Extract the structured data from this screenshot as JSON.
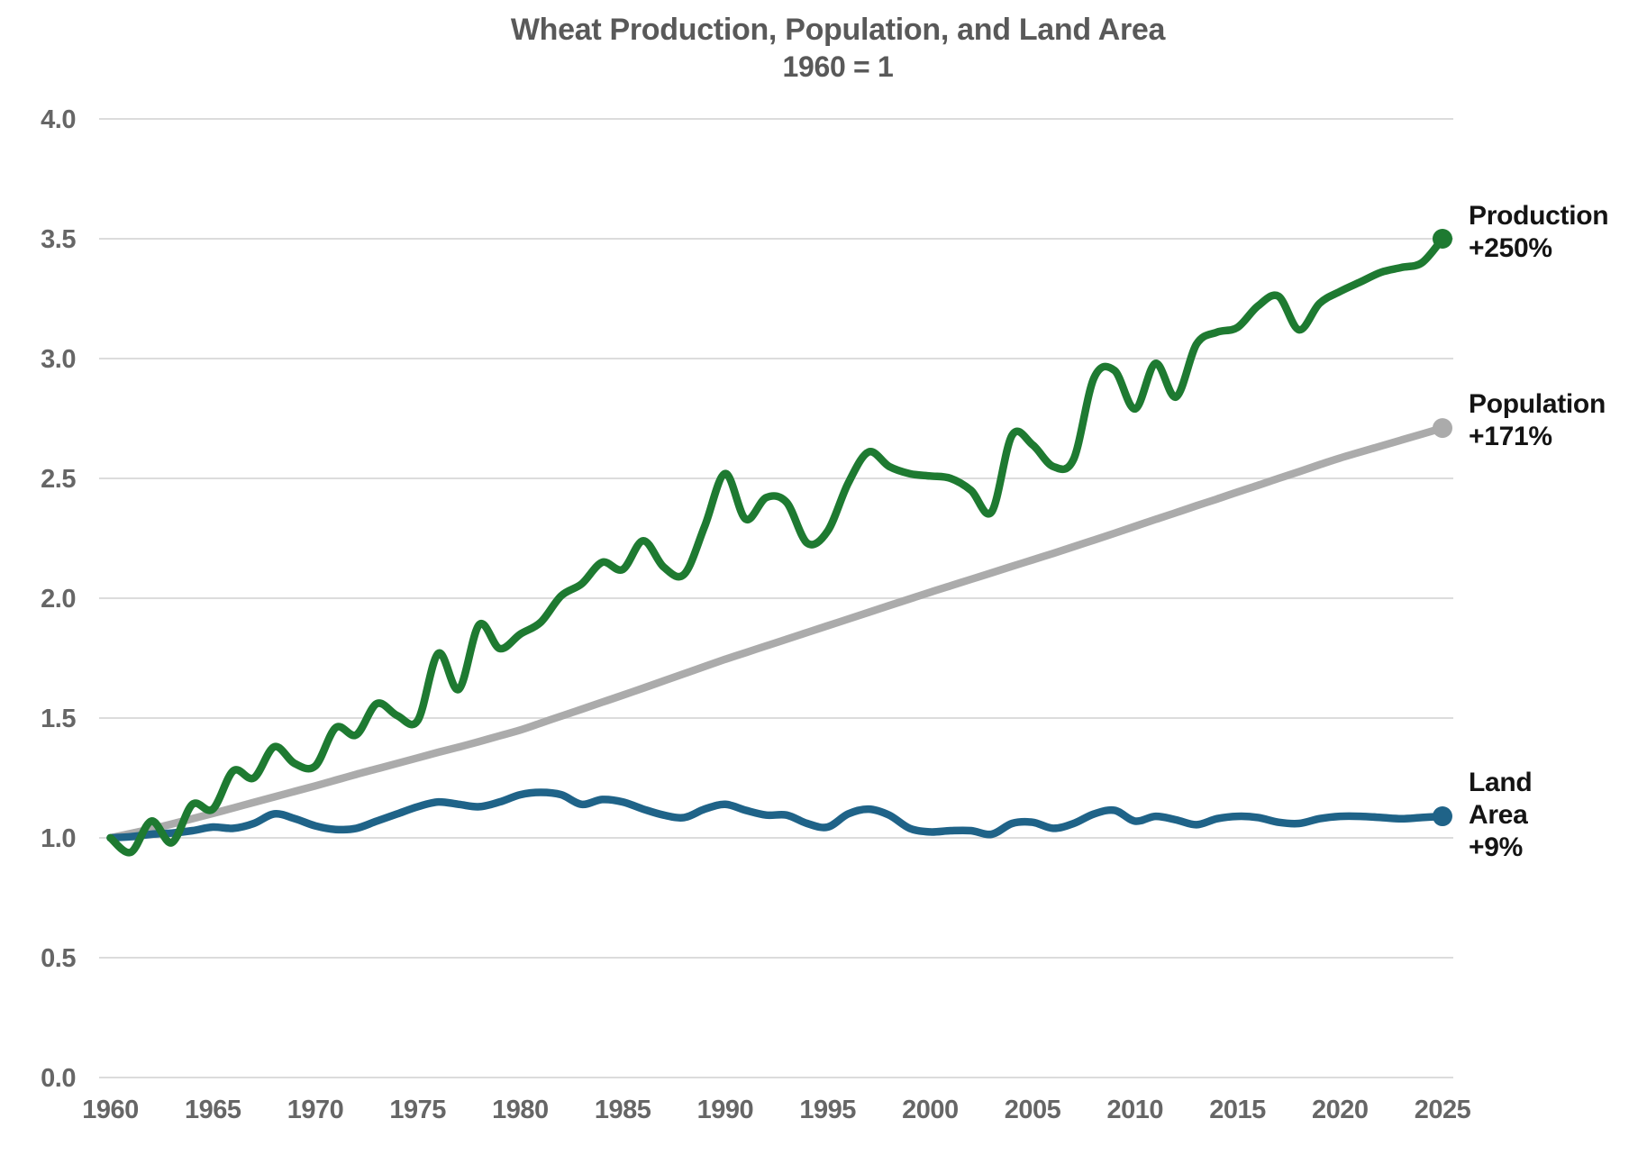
{
  "chart_data": {
    "type": "line",
    "title": "Wheat Production, Population, and Land Area",
    "subtitle": "1960 = 1",
    "x_start": 1960,
    "x_end": 2025,
    "x_step": 1,
    "ylim": [
      0.0,
      4.0
    ],
    "ytick_interval": 0.5,
    "ytick_labels": [
      "0.0",
      "0.5",
      "1.0",
      "1.5",
      "2.0",
      "2.5",
      "3.0",
      "3.5",
      "4.0"
    ],
    "xtick_labels": [
      "1960",
      "1965",
      "1970",
      "1975",
      "1980",
      "1985",
      "1990",
      "1995",
      "2000",
      "2005",
      "2010",
      "2015",
      "2020",
      "2025"
    ],
    "grid": "horizontal-only",
    "legend_position": "end-of-line-labels-right",
    "series": [
      {
        "name": "Production",
        "color": "#1e7a31",
        "end_label": [
          "Production",
          "+250%"
        ],
        "end_value_pct": "+250%",
        "values": [
          1.0,
          0.94,
          1.07,
          0.98,
          1.14,
          1.12,
          1.28,
          1.25,
          1.38,
          1.31,
          1.3,
          1.46,
          1.43,
          1.56,
          1.51,
          1.49,
          1.77,
          1.62,
          1.89,
          1.79,
          1.85,
          1.9,
          2.01,
          2.06,
          2.15,
          2.12,
          2.24,
          2.13,
          2.1,
          2.3,
          2.52,
          2.33,
          2.42,
          2.4,
          2.23,
          2.28,
          2.48,
          2.61,
          2.55,
          2.52,
          2.51,
          2.5,
          2.45,
          2.36,
          2.68,
          2.64,
          2.55,
          2.58,
          2.92,
          2.95,
          2.79,
          2.98,
          2.84,
          3.06,
          3.11,
          3.13,
          3.22,
          3.26,
          3.12,
          3.23,
          3.28,
          3.32,
          3.36,
          3.38,
          3.4,
          3.5
        ]
      },
      {
        "name": "Population",
        "color": "#ababab",
        "end_label": [
          "Population",
          "+171%"
        ],
        "end_value_pct": "+171%",
        "values": [
          1.0,
          1.018,
          1.037,
          1.058,
          1.08,
          1.102,
          1.125,
          1.148,
          1.171,
          1.194,
          1.217,
          1.241,
          1.265,
          1.288,
          1.311,
          1.334,
          1.357,
          1.379,
          1.402,
          1.426,
          1.45,
          1.479,
          1.508,
          1.537,
          1.566,
          1.595,
          1.625,
          1.655,
          1.685,
          1.715,
          1.745,
          1.773,
          1.801,
          1.829,
          1.857,
          1.885,
          1.913,
          1.941,
          1.969,
          1.997,
          2.025,
          2.052,
          2.079,
          2.106,
          2.133,
          2.16,
          2.187,
          2.215,
          2.243,
          2.271,
          2.3,
          2.329,
          2.357,
          2.386,
          2.414,
          2.443,
          2.471,
          2.5,
          2.528,
          2.557,
          2.585,
          2.61,
          2.635,
          2.66,
          2.685,
          2.71
        ]
      },
      {
        "name": "Land Area",
        "color": "#1f6388",
        "end_label": [
          "Land",
          "Area",
          "+9%"
        ],
        "end_value_pct": "+9%",
        "values": [
          1.0,
          1.005,
          1.015,
          1.02,
          1.03,
          1.045,
          1.04,
          1.06,
          1.1,
          1.08,
          1.05,
          1.035,
          1.04,
          1.07,
          1.1,
          1.13,
          1.15,
          1.14,
          1.13,
          1.15,
          1.18,
          1.19,
          1.18,
          1.14,
          1.16,
          1.15,
          1.12,
          1.095,
          1.085,
          1.12,
          1.14,
          1.115,
          1.095,
          1.095,
          1.06,
          1.045,
          1.1,
          1.12,
          1.095,
          1.04,
          1.025,
          1.03,
          1.03,
          1.015,
          1.06,
          1.065,
          1.04,
          1.06,
          1.1,
          1.115,
          1.07,
          1.09,
          1.075,
          1.055,
          1.08,
          1.09,
          1.085,
          1.065,
          1.06,
          1.08,
          1.09,
          1.09,
          1.085,
          1.08,
          1.085,
          1.09
        ]
      }
    ],
    "colors": {
      "grid": "#dcdcdc",
      "tick_text": "#666666",
      "title_text": "#595959",
      "end_label_text": "#141414",
      "background": "#ffffff"
    }
  }
}
